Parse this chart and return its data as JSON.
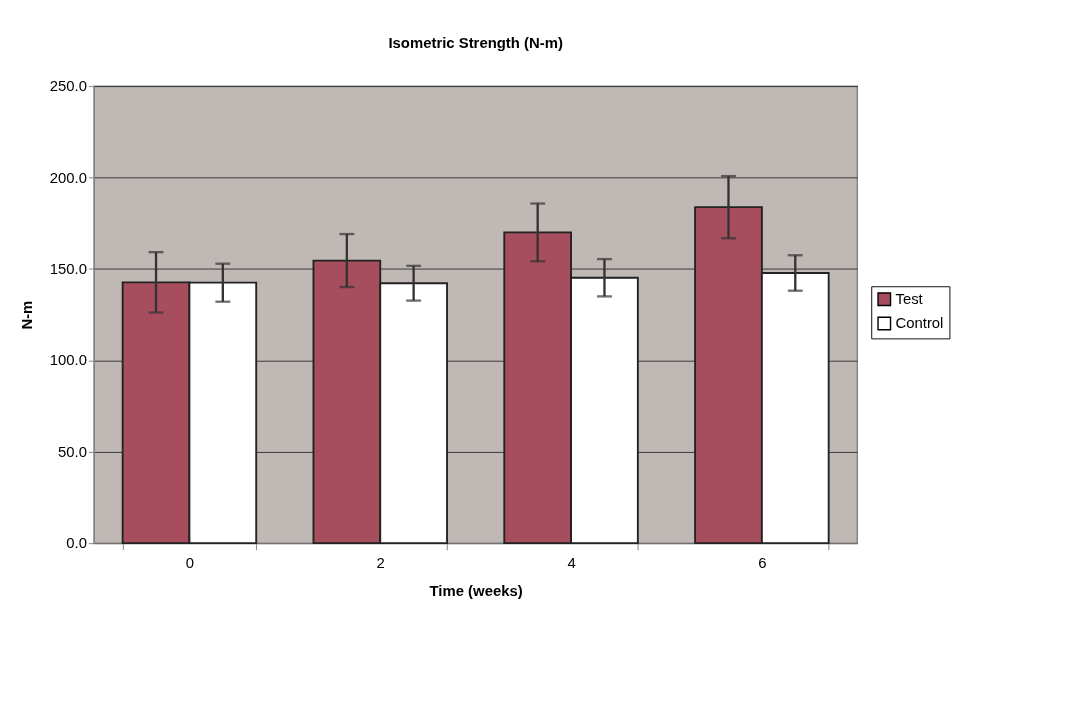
{
  "chart_data": {
    "type": "bar",
    "title": "Isometric Strength (N-m)",
    "xlabel": "Time (weeks)",
    "ylabel": "N-m",
    "categories": [
      "0",
      "2",
      "4",
      "6"
    ],
    "series": [
      {
        "name": "Test",
        "color": "#a64d5e",
        "values": [
          142.7,
          154.6,
          170.0,
          183.8
        ],
        "errors": [
          16.5,
          14.5,
          15.8,
          17.0
        ]
      },
      {
        "name": "Control",
        "color": "#ffffff",
        "values": [
          142.5,
          142.2,
          145.2,
          147.8
        ],
        "errors": [
          10.4,
          9.5,
          10.2,
          9.7
        ]
      }
    ],
    "ylim": [
      0,
      250
    ],
    "yticks": [
      {
        "value": 0,
        "label": "0.0"
      },
      {
        "value": 50,
        "label": "50.0"
      },
      {
        "value": 100,
        "label": "100.0"
      },
      {
        "value": 150,
        "label": "150.0"
      },
      {
        "value": 200,
        "label": "200.0"
      },
      {
        "value": 250,
        "label": "250.0"
      }
    ],
    "grid": "y",
    "legend": "right"
  }
}
